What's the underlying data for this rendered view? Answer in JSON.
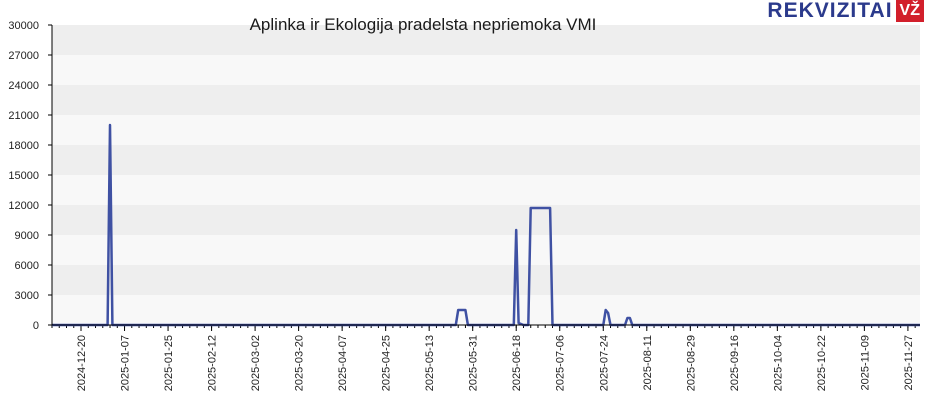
{
  "brand": {
    "name": "REKVIZITAI",
    "badge": "VŽ"
  },
  "colors": {
    "line": "#3f51a3",
    "band_dark": "#eeeeee",
    "band_light": "#f8f8f8",
    "axis": "#000000"
  },
  "chart_data": {
    "type": "line",
    "title": "Aplinka ir Ekologija pradelsta nepriemoka VMI",
    "xlabel": "",
    "ylabel": "",
    "grid": true,
    "ylim": [
      0,
      30000
    ],
    "xlim": [
      "2024-12-08",
      "2025-12-02"
    ],
    "y_ticks": [
      0,
      3000,
      6000,
      9000,
      12000,
      15000,
      18000,
      21000,
      24000,
      27000,
      30000
    ],
    "x_ticks": [
      "2024-12-20",
      "2025-01-07",
      "2025-01-25",
      "2025-02-12",
      "2025-03-02",
      "2025-03-20",
      "2025-04-07",
      "2025-04-25",
      "2025-05-13",
      "2025-05-31",
      "2025-06-18",
      "2025-07-06",
      "2025-07-24",
      "2025-08-11",
      "2025-08-29",
      "2025-09-16",
      "2025-10-04",
      "2025-10-22",
      "2025-11-09",
      "2025-11-27"
    ],
    "series": [
      {
        "name": "",
        "points": [
          [
            "2024-12-08",
            0
          ],
          [
            "2024-12-31",
            0
          ],
          [
            "2025-01-01",
            20000
          ],
          [
            "2025-01-02",
            0
          ],
          [
            "2025-05-24",
            0
          ],
          [
            "2025-05-25",
            1500
          ],
          [
            "2025-05-28",
            1500
          ],
          [
            "2025-05-29",
            0
          ],
          [
            "2025-06-17",
            0
          ],
          [
            "2025-06-18",
            9500
          ],
          [
            "2025-06-19",
            200
          ],
          [
            "2025-06-21",
            0
          ],
          [
            "2025-06-23",
            0
          ],
          [
            "2025-06-24",
            11700
          ],
          [
            "2025-07-02",
            11700
          ],
          [
            "2025-07-03",
            0
          ],
          [
            "2025-07-24",
            0
          ],
          [
            "2025-07-25",
            1500
          ],
          [
            "2025-07-26",
            1200
          ],
          [
            "2025-07-27",
            0
          ],
          [
            "2025-08-02",
            0
          ],
          [
            "2025-08-03",
            700
          ],
          [
            "2025-08-04",
            700
          ],
          [
            "2025-08-05",
            0
          ],
          [
            "2025-12-02",
            0
          ]
        ]
      }
    ]
  }
}
